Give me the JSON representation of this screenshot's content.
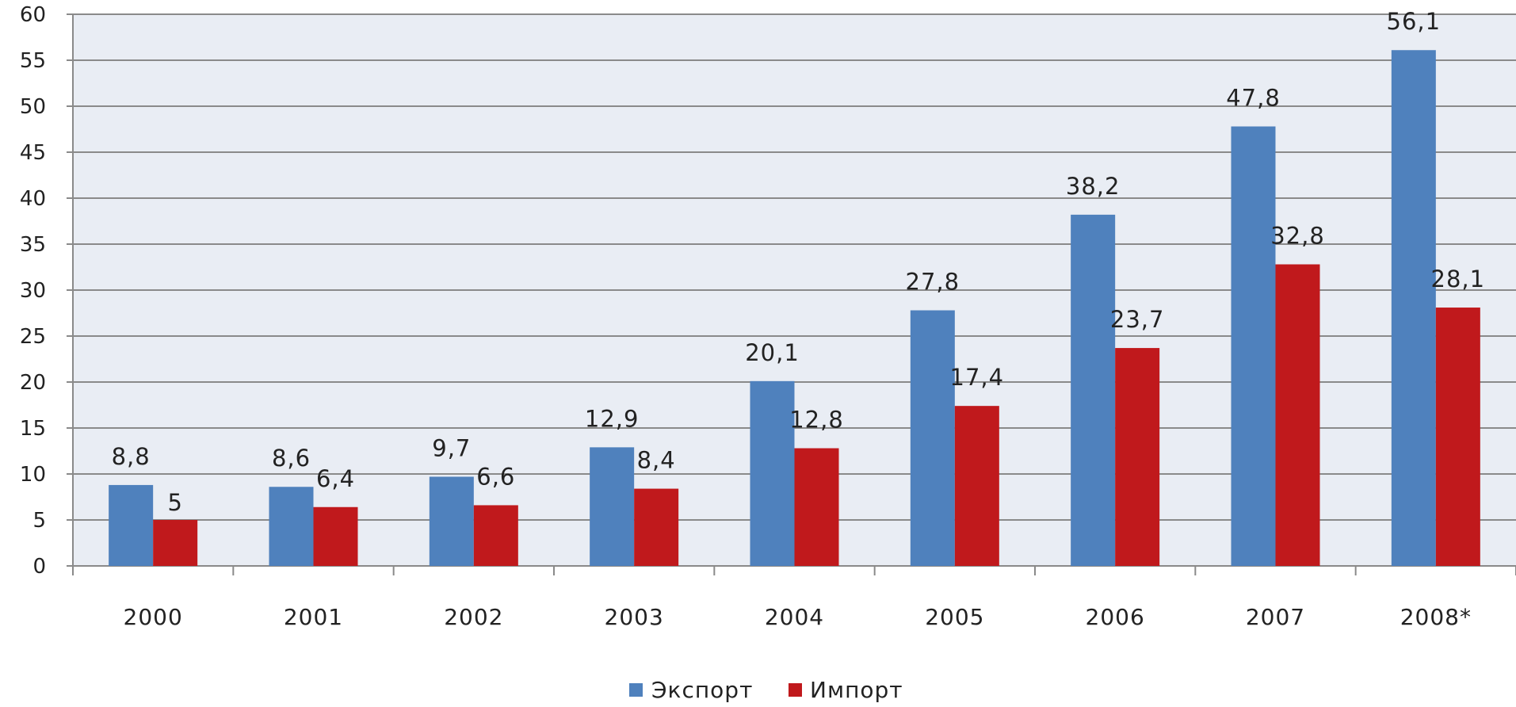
{
  "chart_data": {
    "type": "bar",
    "categories": [
      "2000",
      "2001",
      "2002",
      "2003",
      "2004",
      "2005",
      "2006",
      "2007",
      "2008*"
    ],
    "series": [
      {
        "name": "Экспорт",
        "color": "#4f81bd",
        "values": [
          8.8,
          8.6,
          9.7,
          12.9,
          20.1,
          27.8,
          38.2,
          47.8,
          56.1
        ],
        "labels": [
          "8,8",
          "8,6",
          "9,7",
          "12,9",
          "20,1",
          "27,8",
          "38,2",
          "47,8",
          "56,1"
        ]
      },
      {
        "name": "Импорт",
        "color": "#c0191c",
        "values": [
          5,
          6.4,
          6.6,
          8.4,
          12.8,
          17.4,
          23.7,
          32.8,
          28.1
        ],
        "labels": [
          "5",
          "6,4",
          "6,6",
          "8,4",
          "12,8",
          "17,4",
          "23,7",
          "32,8",
          "28,1"
        ]
      }
    ],
    "yticks": [
      "0",
      "5",
      "10",
      "15",
      "20",
      "25",
      "30",
      "35",
      "40",
      "45",
      "50",
      "55",
      "60"
    ],
    "ylim": [
      0,
      60
    ],
    "grid": true,
    "legend_position": "bottom-center",
    "plot_background": "#e9edf4",
    "gridline_color": "#8a8a8a"
  }
}
